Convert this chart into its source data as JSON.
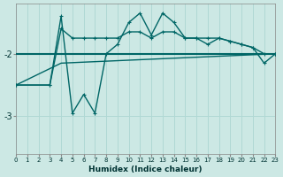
{
  "xlabel": "Humidex (Indice chaleur)",
  "background_color": "#cce8e4",
  "line_color": "#006666",
  "grid_color": "#b0d8d4",
  "xlim": [
    0,
    23
  ],
  "ylim": [
    -3.6,
    -1.2
  ],
  "yticks": [
    -3,
    -2
  ],
  "xticks": [
    0,
    1,
    2,
    3,
    4,
    5,
    6,
    7,
    8,
    9,
    10,
    11,
    12,
    13,
    14,
    15,
    16,
    17,
    18,
    19,
    20,
    21,
    22,
    23
  ],
  "flat_line": {
    "x": [
      0,
      23
    ],
    "y": [
      -2.0,
      -2.0
    ]
  },
  "diagonal_line": {
    "x": [
      0,
      4,
      23
    ],
    "y": [
      -2.5,
      -2.15,
      -2.0
    ]
  },
  "upper_envelope": {
    "x": [
      0,
      3,
      4,
      5,
      6,
      7,
      8,
      9,
      10,
      11,
      12,
      13,
      14,
      15,
      16,
      17,
      18,
      19,
      20,
      21,
      22,
      23
    ],
    "y": [
      -2.5,
      -2.5,
      -1.6,
      -1.75,
      -1.75,
      -1.75,
      -1.75,
      -1.75,
      -1.65,
      -1.65,
      -1.75,
      -1.65,
      -1.65,
      -1.75,
      -1.75,
      -1.75,
      -1.75,
      -1.8,
      -1.85,
      -1.9,
      -2.0,
      -2.0
    ]
  },
  "jagged_line": {
    "x": [
      0,
      3,
      4,
      5,
      6,
      7,
      8,
      9,
      10,
      11,
      12,
      13,
      14,
      15,
      16,
      17,
      18,
      19,
      20,
      21,
      22,
      23
    ],
    "y": [
      -2.5,
      -2.5,
      -1.4,
      -2.95,
      -2.65,
      -2.95,
      -2.0,
      -1.85,
      -1.5,
      -1.35,
      -1.7,
      -1.35,
      -1.5,
      -1.75,
      -1.75,
      -1.85,
      -1.75,
      -1.8,
      -1.85,
      -1.9,
      -2.15,
      -2.0
    ]
  }
}
